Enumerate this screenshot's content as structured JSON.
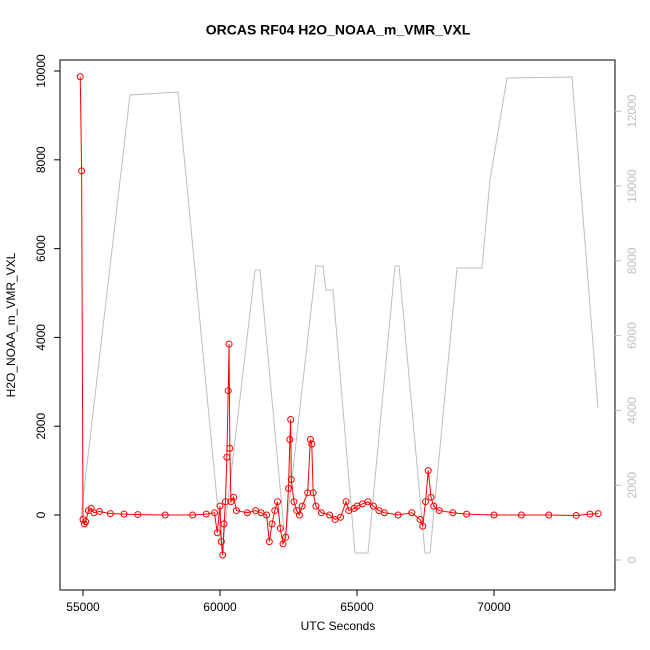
{
  "chart_data": {
    "type": "line",
    "title": "ORCAS RF04 H2O_NOAA_m_VMR_VXL",
    "x_label": "UTC Seconds",
    "y_label": "H2O_NOAA_m_VMR_VXL",
    "xlim": [
      54161,
      74416
    ],
    "xticks": [
      55000,
      60000,
      65000,
      70000
    ],
    "ylim": [
      -1689,
      10248
    ],
    "yticks": [
      0,
      2000,
      4000,
      6000,
      8000,
      10000
    ],
    "y2lim": [
      -802,
      13369
    ],
    "y2ticks": [
      0,
      2000,
      4000,
      6000,
      8000,
      10000,
      12000
    ],
    "series": [
      {
        "color": "#bebebe",
        "axis": "y2",
        "markers": false,
        "x": [
          54900,
          56715,
          58467,
          60073,
          61277,
          61460,
          62372,
          63504,
          63759,
          63869,
          64125,
          64927,
          65402,
          66387,
          66533,
          67482,
          67665,
          68650,
          69562,
          69854,
          70474,
          72847,
          73796
        ],
        "values": [
          990,
          12433,
          12513,
          214,
          7754,
          7754,
          535,
          7861,
          7861,
          7219,
          7219,
          187,
          187,
          7861,
          7861,
          187,
          187,
          7807,
          7807,
          10160,
          12888,
          12914,
          4064
        ]
      },
      {
        "color": "#ff0000",
        "markers": true,
        "x": [
          54900,
          54950,
          55000,
          55050,
          55100,
          55200,
          55300,
          55400,
          55600,
          56000,
          56500,
          57000,
          58000,
          59000,
          59500,
          59800,
          59900,
          60000,
          60050,
          60100,
          60150,
          60200,
          60250,
          60300,
          60330,
          60360,
          60400,
          60500,
          60600,
          61000,
          61300,
          61500,
          61700,
          61800,
          61900,
          62000,
          62100,
          62200,
          62300,
          62400,
          62500,
          62550,
          62580,
          62600,
          62700,
          62800,
          62900,
          63000,
          63200,
          63300,
          63350,
          63400,
          63500,
          63700,
          64000,
          64200,
          64400,
          64600,
          64700,
          64900,
          65000,
          65200,
          65400,
          65600,
          65800,
          66000,
          66500,
          67000,
          67300,
          67400,
          67500,
          67600,
          67700,
          67800,
          68000,
          68500,
          69000,
          70000,
          71000,
          72000,
          73000,
          73500,
          73800
        ],
        "values": [
          9870,
          7750,
          -100,
          -200,
          -150,
          100,
          150,
          50,
          80,
          30,
          20,
          10,
          0,
          0,
          20,
          50,
          -400,
          200,
          -600,
          -900,
          -200,
          300,
          1300,
          2800,
          3850,
          1500,
          300,
          400,
          100,
          50,
          100,
          50,
          0,
          -600,
          -200,
          100,
          300,
          -300,
          -650,
          -500,
          600,
          1700,
          2150,
          800,
          300,
          100,
          0,
          200,
          500,
          1700,
          1600,
          500,
          200,
          50,
          0,
          -100,
          -50,
          300,
          100,
          150,
          200,
          250,
          300,
          200,
          100,
          50,
          0,
          50,
          -100,
          -250,
          300,
          1000,
          400,
          200,
          100,
          50,
          20,
          0,
          0,
          0,
          -10,
          20,
          30
        ]
      }
    ]
  }
}
